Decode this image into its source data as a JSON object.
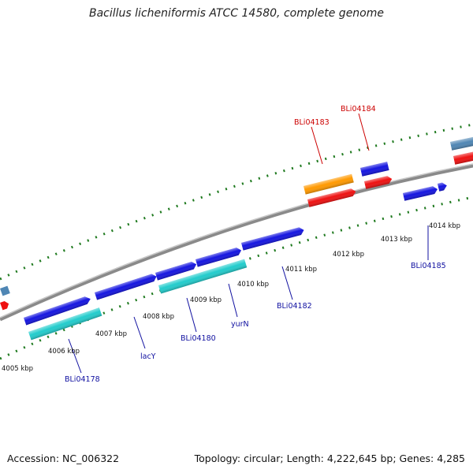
{
  "title": "Bacillus licheniformis ATCC 14580, complete genome",
  "footer": {
    "accession": "Accession: NC_006322",
    "summary": "Topology: circular; Length: 4,222,645 bp; Genes: 4,285"
  },
  "colors": {
    "backbone": "#8a8a8a",
    "tick": "#1f7a1f",
    "forward_cds": "#1515e0",
    "reverse_cds": "#ee1111",
    "rna": "#22cccc",
    "highlight": "#ff9900",
    "other": "#4f86b4",
    "label_blue": "#1010a0",
    "label_red": "#cc0000"
  },
  "axis_labels": [
    "4005 kbp",
    "4006 kbp",
    "4007 kbp",
    "4008 kbp",
    "4009 kbp",
    "4010 kbp",
    "4011 kbp",
    "4012 kbp",
    "4013 kbp",
    "4014 kbp"
  ],
  "gene_labels": [
    {
      "text": "BLi04184",
      "color": "red"
    },
    {
      "text": "BLi04183",
      "color": "red"
    },
    {
      "text": "BLi04185",
      "color": "blue"
    },
    {
      "text": "BLi04182",
      "color": "blue"
    },
    {
      "text": "yurN",
      "color": "blue"
    },
    {
      "text": "BLi04180",
      "color": "blue"
    },
    {
      "text": "lacY",
      "color": "blue"
    },
    {
      "text": "BLi04178",
      "color": "blue"
    }
  ]
}
